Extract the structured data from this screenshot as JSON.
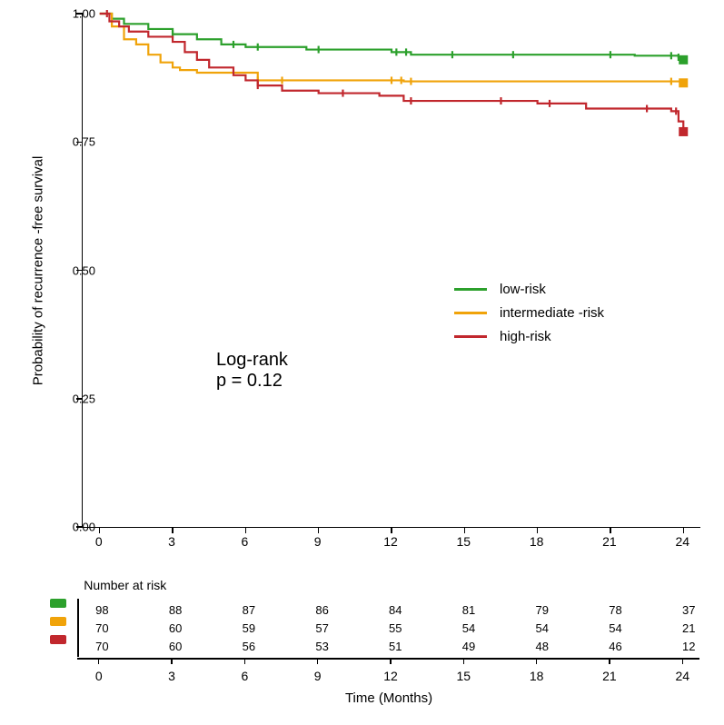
{
  "chart": {
    "type": "kaplan-meier",
    "background_color": "#ffffff",
    "axis_color": "#000000",
    "xlim": [
      -0.7,
      24.7
    ],
    "ylim": [
      0,
      1.0
    ],
    "y_ticks": [
      0.0,
      0.25,
      0.5,
      0.75,
      1.0
    ],
    "y_tick_labels": [
      "0.00",
      "0.25",
      "0.50",
      "0.75",
      "1.00"
    ],
    "x_ticks": [
      0,
      3,
      6,
      9,
      12,
      15,
      18,
      21,
      24
    ],
    "x_tick_labels": [
      "0",
      "3",
      "6",
      "9",
      "12",
      "15",
      "18",
      "21",
      "24"
    ],
    "y_axis_title": "Probability of recurrence -free survival",
    "x_axis_title": "Time (Months)",
    "line_width": 2.2,
    "censor_tick_height": 8,
    "series": [
      {
        "name": "low-risk",
        "color": "#2ca02c",
        "steps": [
          [
            0,
            1.0
          ],
          [
            0.5,
            0.99
          ],
          [
            1.0,
            0.98
          ],
          [
            2.0,
            0.97
          ],
          [
            3.0,
            0.96
          ],
          [
            4.0,
            0.95
          ],
          [
            5.0,
            0.94
          ],
          [
            6.0,
            0.935
          ],
          [
            8.5,
            0.93
          ],
          [
            12.0,
            0.925
          ],
          [
            12.8,
            0.92
          ],
          [
            22.0,
            0.918
          ],
          [
            23.8,
            0.915
          ],
          [
            24.0,
            0.91
          ]
        ],
        "censors": [
          3.0,
          5.5,
          6.5,
          9.0,
          12.2,
          12.6,
          14.5,
          17.0,
          21.0,
          23.5,
          23.8,
          24.0
        ],
        "end_marker": true
      },
      {
        "name": "intermediate -risk",
        "color": "#f0a30a",
        "steps": [
          [
            0,
            1.0
          ],
          [
            0.5,
            0.975
          ],
          [
            1.0,
            0.95
          ],
          [
            1.5,
            0.94
          ],
          [
            2.0,
            0.92
          ],
          [
            2.5,
            0.905
          ],
          [
            3.0,
            0.895
          ],
          [
            3.3,
            0.89
          ],
          [
            4.0,
            0.885
          ],
          [
            6.5,
            0.87
          ],
          [
            12.5,
            0.868
          ],
          [
            24.0,
            0.865
          ]
        ],
        "censors": [
          6.5,
          7.5,
          12.0,
          12.4,
          12.8,
          23.5,
          24.0
        ],
        "end_marker": true
      },
      {
        "name": "high-risk",
        "color": "#c1272d",
        "steps": [
          [
            0,
            1.0
          ],
          [
            0.4,
            0.985
          ],
          [
            0.8,
            0.975
          ],
          [
            1.2,
            0.965
          ],
          [
            2.0,
            0.955
          ],
          [
            3.0,
            0.945
          ],
          [
            3.5,
            0.925
          ],
          [
            4.0,
            0.91
          ],
          [
            4.5,
            0.895
          ],
          [
            5.5,
            0.88
          ],
          [
            6.0,
            0.87
          ],
          [
            6.5,
            0.86
          ],
          [
            7.5,
            0.85
          ],
          [
            9.0,
            0.845
          ],
          [
            11.5,
            0.84
          ],
          [
            12.5,
            0.83
          ],
          [
            18.0,
            0.825
          ],
          [
            20.0,
            0.815
          ],
          [
            23.5,
            0.81
          ],
          [
            23.8,
            0.79
          ],
          [
            24.0,
            0.77
          ]
        ],
        "censors": [
          0.3,
          6.5,
          10.0,
          12.8,
          16.5,
          18.5,
          22.5,
          23.7,
          24.0
        ],
        "end_marker": true
      }
    ],
    "legend": {
      "items": [
        {
          "label": "low-risk",
          "color": "#2ca02c"
        },
        {
          "label": "intermediate -risk",
          "color": "#f0a30a"
        },
        {
          "label": "high-risk",
          "color": "#c1272d"
        }
      ]
    },
    "stat_text_line1": "Log-rank",
    "stat_text_line2": "p = 0.12"
  },
  "risk_table": {
    "title": "Number at risk",
    "x_ticks": [
      0,
      3,
      6,
      9,
      12,
      15,
      18,
      21,
      24
    ],
    "x_tick_labels": [
      "0",
      "3",
      "6",
      "9",
      "12",
      "15",
      "18",
      "21",
      "24"
    ],
    "rows": [
      {
        "color": "#2ca02c",
        "values": [
          "98",
          "88",
          "87",
          "86",
          "84",
          "81",
          "79",
          "78",
          "37"
        ]
      },
      {
        "color": "#f0a30a",
        "values": [
          "70",
          "60",
          "59",
          "57",
          "55",
          "54",
          "54",
          "54",
          "21"
        ]
      },
      {
        "color": "#c1272d",
        "values": [
          "70",
          "60",
          "56",
          "53",
          "51",
          "49",
          "48",
          "46",
          "12"
        ]
      }
    ]
  }
}
